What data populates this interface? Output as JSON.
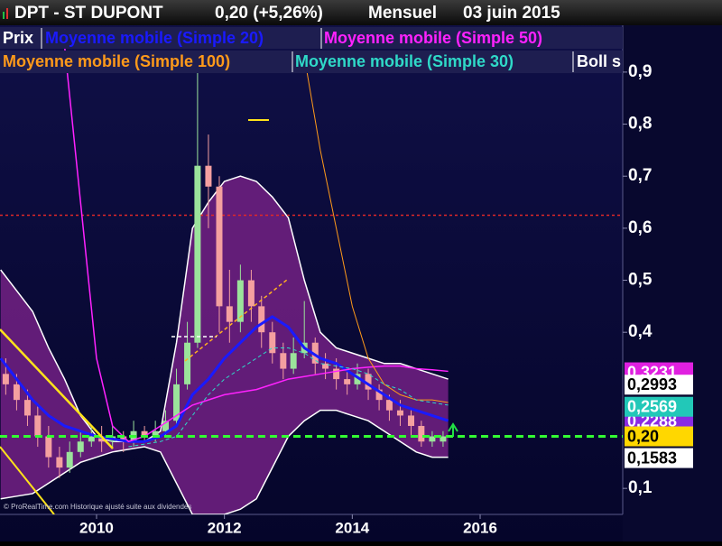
{
  "chart_data": {
    "type": "candlestick",
    "title": "DPT - ST DUPONT",
    "price": "0,20 (+5,26%)",
    "period": "Mensuel",
    "date": "03 juin 2015",
    "name": "Prix",
    "source": "© ProRealTime.com Historique ajusté suite aux dividendes",
    "up_color": "#9be39b",
    "down_color": "#f4a0a0",
    "x": [
      2008.58,
      2008.75,
      2008.92,
      2009.08,
      2009.25,
      2009.42,
      2009.58,
      2009.75,
      2009.92,
      2010.08,
      2010.25,
      2010.42,
      2010.58,
      2010.75,
      2010.92,
      2011.08,
      2011.25,
      2011.42,
      2011.58,
      2011.75,
      2011.92,
      2012.08,
      2012.25,
      2012.42,
      2012.58,
      2012.75,
      2012.92,
      2013.08,
      2013.25,
      2013.42,
      2013.58,
      2013.75,
      2013.92,
      2014.08,
      2014.25,
      2014.42,
      2014.58,
      2014.75,
      2014.92,
      2015.08,
      2015.25,
      2015.42
    ],
    "open": [
      0.32,
      0.3,
      0.27,
      0.24,
      0.2,
      0.16,
      0.14,
      0.17,
      0.19,
      0.2,
      0.19,
      0.2,
      0.19,
      0.21,
      0.2,
      0.21,
      0.23,
      0.3,
      0.38,
      0.72,
      0.68,
      0.45,
      0.42,
      0.5,
      0.45,
      0.4,
      0.36,
      0.33,
      0.36,
      0.38,
      0.34,
      0.33,
      0.31,
      0.3,
      0.32,
      0.29,
      0.27,
      0.25,
      0.24,
      0.22,
      0.19,
      0.19
    ],
    "high": [
      0.35,
      0.32,
      0.29,
      0.26,
      0.22,
      0.18,
      0.19,
      0.21,
      0.22,
      0.22,
      0.22,
      0.21,
      0.23,
      0.22,
      0.23,
      0.25,
      0.33,
      0.42,
      0.9,
      0.78,
      0.7,
      0.52,
      0.53,
      0.52,
      0.47,
      0.42,
      0.38,
      0.39,
      0.46,
      0.39,
      0.36,
      0.35,
      0.33,
      0.34,
      0.33,
      0.3,
      0.28,
      0.27,
      0.25,
      0.23,
      0.21,
      0.21
    ],
    "low": [
      0.28,
      0.25,
      0.22,
      0.18,
      0.14,
      0.12,
      0.13,
      0.16,
      0.18,
      0.17,
      0.18,
      0.17,
      0.18,
      0.19,
      0.19,
      0.2,
      0.22,
      0.29,
      0.37,
      0.6,
      0.4,
      0.38,
      0.4,
      0.42,
      0.37,
      0.34,
      0.31,
      0.32,
      0.35,
      0.32,
      0.31,
      0.29,
      0.28,
      0.29,
      0.27,
      0.25,
      0.23,
      0.22,
      0.2,
      0.18,
      0.18,
      0.18
    ],
    "close": [
      0.3,
      0.27,
      0.24,
      0.2,
      0.16,
      0.14,
      0.17,
      0.19,
      0.2,
      0.19,
      0.2,
      0.19,
      0.21,
      0.2,
      0.21,
      0.23,
      0.3,
      0.38,
      0.72,
      0.68,
      0.45,
      0.42,
      0.5,
      0.45,
      0.4,
      0.36,
      0.33,
      0.36,
      0.38,
      0.34,
      0.33,
      0.31,
      0.3,
      0.32,
      0.29,
      0.27,
      0.25,
      0.24,
      0.22,
      0.19,
      0.2,
      0.2
    ],
    "overlays": {
      "x": [
        2008.5,
        2008.75,
        2009,
        2009.25,
        2009.5,
        2009.75,
        2010,
        2010.25,
        2010.5,
        2010.75,
        2011,
        2011.25,
        2011.5,
        2011.75,
        2012,
        2012.25,
        2012.5,
        2012.75,
        2013,
        2013.25,
        2013.5,
        2013.75,
        2014,
        2014.25,
        2014.5,
        2014.75,
        2015,
        2015.25,
        2015.5
      ],
      "series": [
        {
          "name": "Moyenne mobile (Simple 20)",
          "color": "#1a1aff",
          "width": 3,
          "dashed": false,
          "values": [
            0.35,
            0.31,
            0.27,
            0.24,
            0.22,
            0.21,
            0.2,
            0.195,
            0.19,
            0.19,
            0.2,
            0.22,
            0.28,
            0.31,
            0.35,
            0.38,
            0.41,
            0.43,
            0.41,
            0.37,
            0.35,
            0.34,
            0.32,
            0.3,
            0.28,
            0.26,
            0.25,
            0.24,
            0.23
          ]
        },
        {
          "name": "Moyenne mobile (Simple 50)",
          "color": "#ff22ff",
          "width": 1.5,
          "dashed": false,
          "values": [
            null,
            null,
            null,
            null,
            0.95,
            0.65,
            0.35,
            0.22,
            0.19,
            0.2,
            0.22,
            0.24,
            0.26,
            0.27,
            0.28,
            0.285,
            0.29,
            0.3,
            0.31,
            0.315,
            0.32,
            0.325,
            0.33,
            0.333,
            0.335,
            0.335,
            0.33,
            0.328,
            0.325
          ]
        },
        {
          "name": "Moyenne mobile (Simple 100)",
          "color": "#ff9a1a",
          "width": 1,
          "dashed": false,
          "values": [
            null,
            null,
            null,
            null,
            null,
            null,
            null,
            null,
            null,
            null,
            null,
            null,
            null,
            null,
            null,
            null,
            null,
            null,
            null,
            0.93,
            0.75,
            0.6,
            0.45,
            0.35,
            0.3,
            0.28,
            0.27,
            0.27,
            0.265
          ]
        },
        {
          "name": "Moyenne mobile (Simple 30)",
          "color": "#2fd9c8",
          "width": 1,
          "dashed": true,
          "values": [
            null,
            null,
            null,
            null,
            null,
            null,
            null,
            null,
            0.18,
            0.185,
            0.19,
            0.2,
            0.24,
            0.28,
            0.31,
            0.33,
            0.35,
            0.37,
            0.37,
            0.36,
            0.34,
            0.335,
            0.33,
            0.32,
            0.3,
            0.29,
            0.27,
            0.265,
            0.26
          ]
        }
      ],
      "bollinger": {
        "name": "Boll s",
        "color": "#ffffff",
        "fill": "#6d1f80",
        "upper": [
          0.52,
          0.48,
          0.44,
          0.37,
          0.31,
          0.24,
          0.2,
          0.19,
          0.19,
          0.19,
          0.21,
          0.38,
          0.6,
          0.65,
          0.69,
          0.7,
          0.69,
          0.66,
          0.62,
          0.5,
          0.4,
          0.37,
          0.36,
          0.35,
          0.34,
          0.34,
          0.33,
          0.32,
          0.31
        ],
        "lower": [
          0.08,
          0.085,
          0.09,
          0.11,
          0.13,
          0.15,
          0.16,
          0.17,
          0.175,
          0.18,
          0.17,
          0.11,
          0.05,
          0.05,
          0.05,
          0.06,
          0.08,
          0.14,
          0.2,
          0.23,
          0.25,
          0.25,
          0.24,
          0.23,
          0.21,
          0.19,
          0.17,
          0.16,
          0.16
        ]
      }
    },
    "levels": [
      {
        "value": 0.625,
        "color": "#e02828"
      }
    ],
    "price_labels": [
      {
        "value": 0.3231,
        "label": "0,3231",
        "color": "#e020e0",
        "text_color": "#ffffff"
      },
      {
        "value": 0.2288,
        "label": "0,2288",
        "color": "#8a2be2",
        "text_color": "#ffffff"
      },
      {
        "value": 0.2569,
        "label": "0,2569",
        "color": "#22c8b8",
        "text_color": "#ffffff"
      },
      {
        "value": 0.2993,
        "label": "0,2993",
        "color": "#ffffff",
        "text_color": "#000000"
      },
      {
        "value": 0.1583,
        "label": "0,1583",
        "color": "#ffffff",
        "text_color": "#000000"
      },
      {
        "value": 0.2,
        "label": "0,20",
        "color": "#ffd700",
        "text_color": "#000000"
      }
    ],
    "ylim": [
      0.05,
      0.99
    ],
    "yticks": [
      {
        "value": 0.1,
        "label": "0,1"
      },
      {
        "value": 0.4,
        "label": "0,4"
      },
      {
        "value": 0.5,
        "label": "0,5"
      },
      {
        "value": 0.6,
        "label": "0,6"
      },
      {
        "value": 0.7,
        "label": "0,7"
      },
      {
        "value": 0.8,
        "label": "0,8"
      },
      {
        "value": 0.9,
        "label": "0,9"
      }
    ],
    "xlim": [
      2008.49,
      2018.23
    ],
    "xticks": [
      2010,
      2012,
      2014,
      2016
    ]
  }
}
